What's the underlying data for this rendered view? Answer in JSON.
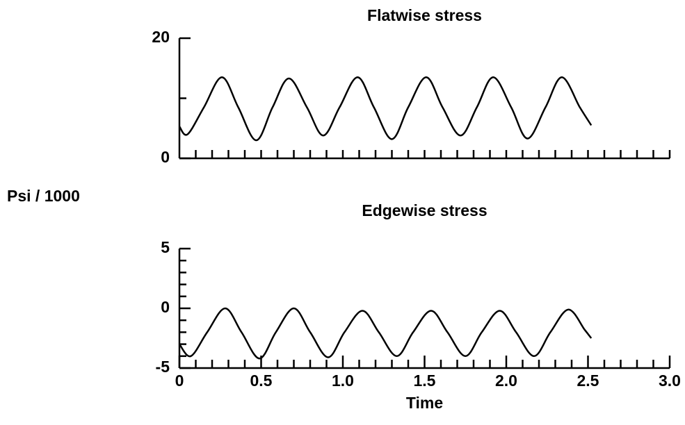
{
  "ylabel": "Psi / 1000",
  "chart_data": [
    {
      "type": "line",
      "title": "Flatwise stress",
      "x": [
        0,
        0.05,
        0.15,
        0.26,
        0.36,
        0.47,
        0.57,
        0.67,
        0.78,
        0.88,
        0.98,
        1.09,
        1.19,
        1.3,
        1.4,
        1.51,
        1.61,
        1.72,
        1.82,
        1.92,
        2.03,
        2.13,
        2.24,
        2.34,
        2.45,
        2.52
      ],
      "series": [
        {
          "name": "Flatwise stress",
          "color": "#000000",
          "values": [
            5.3,
            4,
            8.5,
            13.5,
            8.5,
            3,
            8.5,
            13.3,
            8.5,
            3.8,
            8.5,
            13.5,
            8.5,
            3.2,
            8.5,
            13.5,
            8.5,
            3.8,
            8.5,
            13.5,
            8.5,
            3.3,
            8.5,
            13.5,
            8.5,
            5.5
          ]
        }
      ],
      "xlim": [
        0,
        3
      ],
      "ylim": [
        0,
        20
      ],
      "yticks": [
        0,
        20
      ],
      "minor_yticks": [
        10
      ],
      "minor_xticks": [
        0.1,
        0.2,
        0.3,
        0.4,
        0.5,
        0.6,
        0.7,
        0.8,
        0.9,
        1,
        1.1,
        1.2,
        1.3,
        1.4,
        1.5,
        1.6,
        1.7,
        1.8,
        1.9,
        2,
        2.1,
        2.2,
        2.3,
        2.4,
        2.5,
        2.6,
        2.7,
        2.8,
        2.9,
        3
      ]
    },
    {
      "type": "line",
      "title": "Edgewise stress",
      "xlabel": "Time",
      "x": [
        0,
        0.07,
        0.17,
        0.28,
        0.38,
        0.49,
        0.59,
        0.7,
        0.8,
        0.91,
        1.01,
        1.12,
        1.22,
        1.33,
        1.43,
        1.54,
        1.64,
        1.75,
        1.85,
        1.96,
        2.06,
        2.17,
        2.27,
        2.38,
        2.48,
        2.52
      ],
      "series": [
        {
          "name": "Edgewise stress",
          "color": "#000000",
          "values": [
            -3,
            -4,
            -2,
            0,
            -2,
            -4.2,
            -2,
            0,
            -2,
            -4.1,
            -2,
            -0.2,
            -2,
            -4,
            -2,
            -0.2,
            -2,
            -4,
            -2,
            -0.2,
            -2,
            -4,
            -2,
            -0.1,
            -1.8,
            -2.5
          ]
        }
      ],
      "xlim": [
        0,
        3
      ],
      "ylim": [
        -5,
        5
      ],
      "yticks": [
        -5,
        0,
        5
      ],
      "minor_yticks": [
        -4,
        -3,
        -2,
        -1,
        1,
        2,
        3,
        4
      ],
      "xticks": [
        0,
        0.5,
        {
          "value": 1,
          "label": "1.0"
        },
        1.5,
        {
          "value": 2,
          "label": "2.0"
        },
        2.5,
        {
          "value": 3,
          "label": "3.0"
        }
      ],
      "minor_xticks": [
        0.1,
        0.2,
        0.3,
        0.4,
        0.6,
        0.7,
        0.8,
        0.9,
        1.1,
        1.2,
        1.3,
        1.4,
        1.6,
        1.7,
        1.8,
        1.9,
        2.1,
        2.2,
        2.3,
        2.4,
        2.6,
        2.7,
        2.8,
        2.9
      ]
    }
  ]
}
